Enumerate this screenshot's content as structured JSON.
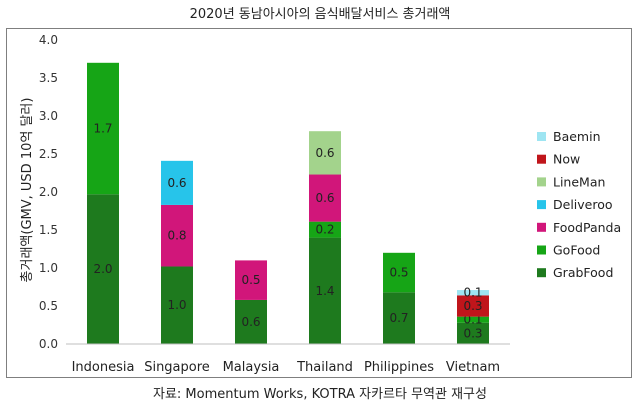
{
  "title": "2020년 동남아시아의 음식배달서비스 총거래액",
  "source": "자료: Momentum Works, KOTRA 자카르타 무역관 재구성",
  "chart_data": {
    "type": "bar",
    "stacked": true,
    "ylabel": "총거래액(GMV, USD 10억 달러)",
    "ylim": [
      0,
      4.0
    ],
    "yticks": [
      "0.0",
      "0.5",
      "1.0",
      "1.5",
      "2.0",
      "2.5",
      "3.0",
      "3.5",
      "4.0"
    ],
    "categories": [
      "Indonesia",
      "Singapore",
      "Malaysia",
      "Thailand",
      "Philippines",
      "Vietnam"
    ],
    "legend_position": "right",
    "series": [
      {
        "name": "GrabFood",
        "color": "#1e7a1e",
        "values": [
          1.97,
          1.02,
          0.58,
          1.4,
          0.68,
          0.28
        ],
        "labels": [
          "2.0",
          "1.0",
          "0.6",
          "1.4",
          "0.7",
          "0.3"
        ]
      },
      {
        "name": "GoFood",
        "color": "#16a516",
        "values": [
          1.73,
          0,
          0,
          0.21,
          0.52,
          0.08
        ],
        "labels": [
          "1.7",
          "",
          "",
          "0.2",
          "0.5",
          "0.1"
        ]
      },
      {
        "name": "FoodPanda",
        "color": "#d1167a",
        "values": [
          0,
          0.81,
          0.52,
          0.62,
          0,
          0
        ],
        "labels": [
          "",
          "0.8",
          "0.5",
          "0.6",
          "",
          ""
        ]
      },
      {
        "name": "Deliveroo",
        "color": "#27c4ea",
        "values": [
          0,
          0.58,
          0,
          0,
          0,
          0
        ],
        "labels": [
          "",
          "0.6",
          "",
          "",
          "",
          ""
        ]
      },
      {
        "name": "LineMan",
        "color": "#a3d38c",
        "values": [
          0,
          0,
          0,
          0.57,
          0,
          0
        ],
        "labels": [
          "",
          "",
          "",
          "0.6",
          "",
          ""
        ]
      },
      {
        "name": "Now",
        "color": "#c0151b",
        "values": [
          0,
          0,
          0,
          0,
          0,
          0.28
        ],
        "labels": [
          "",
          "",
          "",
          "",
          "",
          "0.3"
        ]
      },
      {
        "name": "Baemin",
        "color": "#9ee5f2",
        "values": [
          0,
          0,
          0,
          0,
          0,
          0.07
        ],
        "labels": [
          "",
          "",
          "",
          "",
          "",
          "0.1"
        ]
      }
    ],
    "legend_order": [
      "Baemin",
      "Now",
      "LineMan",
      "Deliveroo",
      "FoodPanda",
      "GoFood",
      "GrabFood"
    ]
  }
}
